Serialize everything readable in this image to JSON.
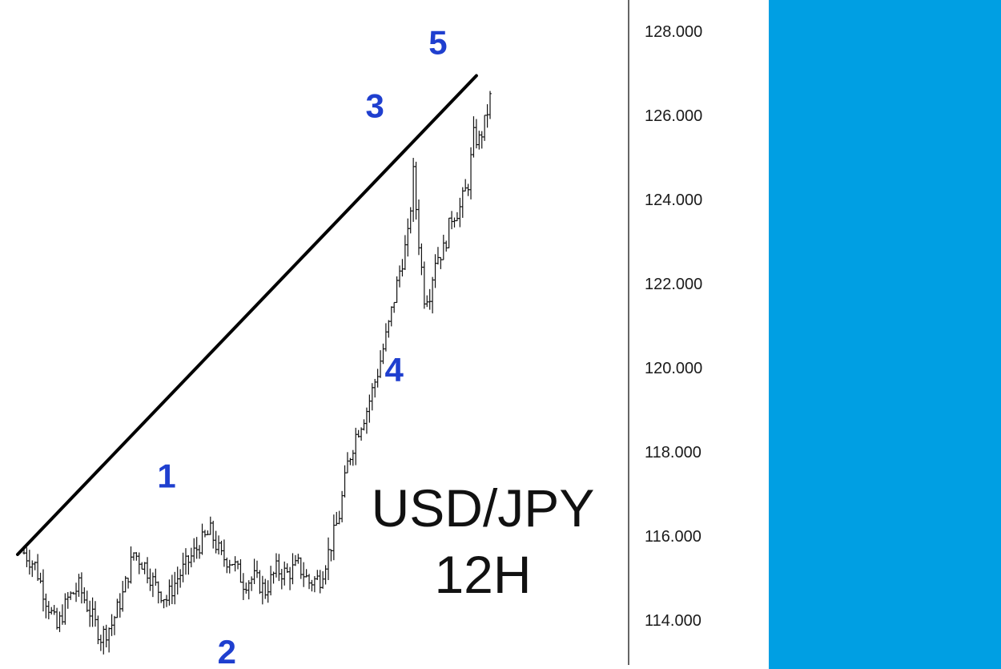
{
  "colors": {
    "background": "#ffffff",
    "candles": "#111111",
    "trendline": "#000000",
    "wave_labels": "#1f3fcf",
    "axis": "#333333",
    "side_panel": "#009fe3"
  },
  "title_lines": [
    "USD/JPY",
    "12H"
  ],
  "chart_data": {
    "type": "candlestick",
    "ylim": [
      113.0,
      129.0
    ],
    "y_ticks": [
      114,
      116,
      118,
      120,
      122,
      124,
      126,
      128
    ],
    "y_tick_labels": [
      "114.000",
      "116.000",
      "118.000",
      "120.000",
      "122.000",
      "124.000",
      "126.000",
      "128.000"
    ],
    "x_count": 170,
    "close_path": [
      [
        0,
        115.6
      ],
      [
        4,
        115.3
      ],
      [
        8,
        114.5
      ],
      [
        12,
        113.8
      ],
      [
        16,
        114.5
      ],
      [
        20,
        114.8
      ],
      [
        24,
        114.2
      ],
      [
        28,
        113.6
      ],
      [
        32,
        113.9
      ],
      [
        36,
        114.6
      ],
      [
        40,
        115.6
      ],
      [
        44,
        115.3
      ],
      [
        48,
        114.8
      ],
      [
        52,
        114.5
      ],
      [
        56,
        115.0
      ],
      [
        60,
        115.4
      ],
      [
        64,
        115.8
      ],
      [
        68,
        116.1
      ],
      [
        72,
        115.5
      ],
      [
        76,
        115.4
      ],
      [
        80,
        114.9
      ],
      [
        84,
        115.0
      ],
      [
        88,
        114.7
      ],
      [
        92,
        115.2
      ],
      [
        96,
        115.1
      ],
      [
        100,
        115.3
      ],
      [
        104,
        114.9
      ],
      [
        108,
        115.0
      ],
      [
        112,
        115.8
      ],
      [
        115,
        116.5
      ],
      [
        118,
        117.7
      ],
      [
        121,
        118.4
      ],
      [
        125,
        119.0
      ],
      [
        129,
        119.9
      ],
      [
        133,
        121.0
      ],
      [
        137,
        122.3
      ],
      [
        140,
        123.1
      ],
      [
        142,
        124.6
      ],
      [
        144,
        123.0
      ],
      [
        146,
        121.7
      ],
      [
        148,
        121.8
      ],
      [
        150,
        122.6
      ],
      [
        153,
        122.8
      ],
      [
        156,
        123.6
      ],
      [
        159,
        123.8
      ],
      [
        162,
        124.4
      ],
      [
        164,
        125.5
      ],
      [
        166,
        125.4
      ],
      [
        168,
        125.8
      ],
      [
        170,
        126.4
      ]
    ],
    "trendline": {
      "from": [
        0,
        115.6
      ],
      "to": [
        165,
        127.0
      ]
    },
    "wave_labels": [
      {
        "label": "1",
        "x": 52,
        "y": 116.3,
        "position": "above"
      },
      {
        "label": "2",
        "x": 74,
        "y": 114.5,
        "position": "below"
      },
      {
        "label": "3",
        "x": 128,
        "y": 125.1,
        "position": "above"
      },
      {
        "label": "4",
        "x": 135,
        "y": 121.2,
        "position": "below"
      },
      {
        "label": "5",
        "x": 151,
        "y": 126.6,
        "position": "above"
      }
    ]
  }
}
